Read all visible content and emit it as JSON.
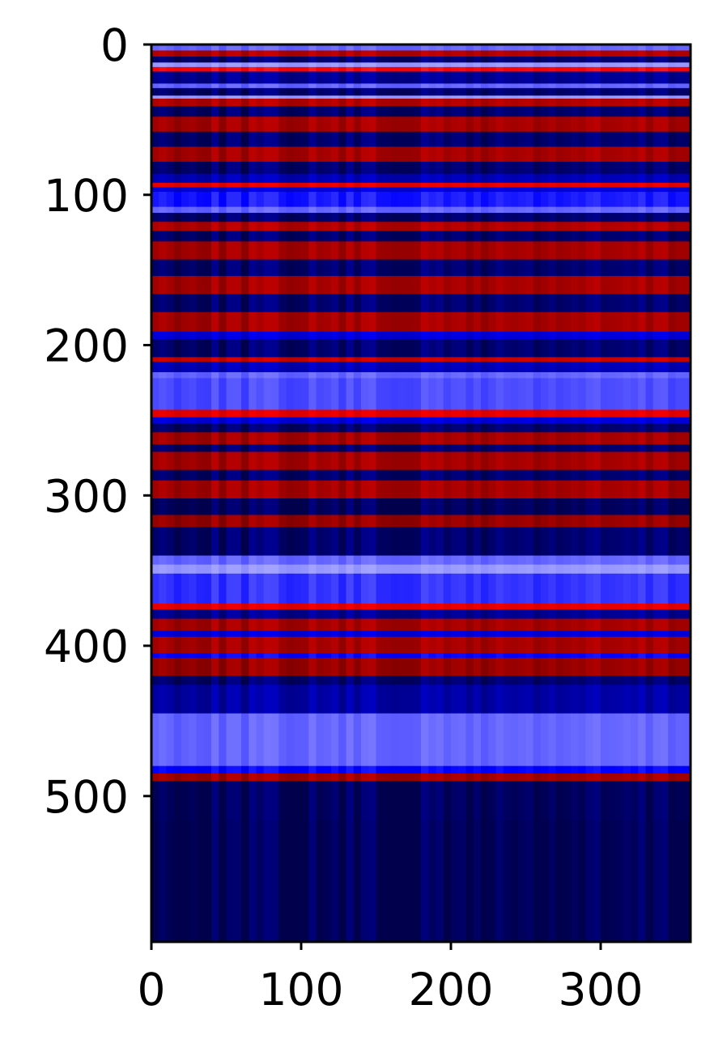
{
  "chart_data": {
    "type": "heatmap",
    "title": "",
    "xlabel": "",
    "ylabel": "",
    "colormap": "seismic",
    "colors": {
      "low": "#00004c",
      "mid_low": "#0000ff",
      "center": "#ffffff",
      "mid_high": "#ff0000",
      "high": "#800000"
    },
    "xlim": [
      0,
      360
    ],
    "ylim": [
      597,
      0
    ],
    "x_ticks": [
      0,
      100,
      200,
      300
    ],
    "x_tick_labels": [
      "0",
      "100",
      "200",
      "300"
    ],
    "y_ticks": [
      0,
      100,
      200,
      300,
      400,
      500
    ],
    "y_tick_labels": [
      "0",
      "100",
      "200",
      "300",
      "400",
      "500"
    ],
    "grid": false,
    "legend": "none",
    "rows_pattern": "horizontal bands; value is roughly constant along x",
    "row_bands": [
      {
        "y0": 0,
        "y1": 4,
        "value": -0.3
      },
      {
        "y0": 4,
        "y1": 8,
        "value": 0.8
      },
      {
        "y0": 8,
        "y1": 12,
        "value": -0.9
      },
      {
        "y0": 12,
        "y1": 15,
        "value": -0.2
      },
      {
        "y0": 15,
        "y1": 18,
        "value": 0.5
      },
      {
        "y0": 18,
        "y1": 26,
        "value": -0.8
      },
      {
        "y0": 26,
        "y1": 29,
        "value": -0.3
      },
      {
        "y0": 29,
        "y1": 34,
        "value": -0.9
      },
      {
        "y0": 34,
        "y1": 36,
        "value": -0.2
      },
      {
        "y0": 36,
        "y1": 41,
        "value": 0.8
      },
      {
        "y0": 41,
        "y1": 48,
        "value": -0.9
      },
      {
        "y0": 48,
        "y1": 58,
        "value": 0.85
      },
      {
        "y0": 58,
        "y1": 68,
        "value": -0.9
      },
      {
        "y0": 68,
        "y1": 78,
        "value": 0.85
      },
      {
        "y0": 78,
        "y1": 86,
        "value": -0.9
      },
      {
        "y0": 86,
        "y1": 92,
        "value": -0.7
      },
      {
        "y0": 92,
        "y1": 95,
        "value": 0.6
      },
      {
        "y0": 95,
        "y1": 98,
        "value": -0.6
      },
      {
        "y0": 98,
        "y1": 108,
        "value": -0.45
      },
      {
        "y0": 108,
        "y1": 112,
        "value": -0.3
      },
      {
        "y0": 112,
        "y1": 118,
        "value": -0.9
      },
      {
        "y0": 118,
        "y1": 124,
        "value": 0.8
      },
      {
        "y0": 124,
        "y1": 131,
        "value": -0.9
      },
      {
        "y0": 131,
        "y1": 143,
        "value": 0.85
      },
      {
        "y0": 143,
        "y1": 154,
        "value": -0.9
      },
      {
        "y0": 154,
        "y1": 166,
        "value": 0.85
      },
      {
        "y0": 166,
        "y1": 178,
        "value": -0.9
      },
      {
        "y0": 178,
        "y1": 191,
        "value": 0.85
      },
      {
        "y0": 191,
        "y1": 196,
        "value": -0.6
      },
      {
        "y0": 196,
        "y1": 208,
        "value": -0.9
      },
      {
        "y0": 208,
        "y1": 211,
        "value": 0.7
      },
      {
        "y0": 211,
        "y1": 218,
        "value": -0.7
      },
      {
        "y0": 218,
        "y1": 222,
        "value": -0.3
      },
      {
        "y0": 222,
        "y1": 243,
        "value": -0.35
      },
      {
        "y0": 243,
        "y1": 248,
        "value": 0.6
      },
      {
        "y0": 248,
        "y1": 252,
        "value": -0.6
      },
      {
        "y0": 252,
        "y1": 258,
        "value": -0.9
      },
      {
        "y0": 258,
        "y1": 266,
        "value": 0.85
      },
      {
        "y0": 266,
        "y1": 271,
        "value": -0.9
      },
      {
        "y0": 271,
        "y1": 283,
        "value": 0.85
      },
      {
        "y0": 283,
        "y1": 290,
        "value": -0.9
      },
      {
        "y0": 290,
        "y1": 302,
        "value": 0.85
      },
      {
        "y0": 302,
        "y1": 313,
        "value": -0.95
      },
      {
        "y0": 313,
        "y1": 321,
        "value": 0.9
      },
      {
        "y0": 321,
        "y1": 340,
        "value": -0.9
      },
      {
        "y0": 340,
        "y1": 346,
        "value": -0.3
      },
      {
        "y0": 346,
        "y1": 352,
        "value": -0.2
      },
      {
        "y0": 352,
        "y1": 372,
        "value": -0.4
      },
      {
        "y0": 372,
        "y1": 376,
        "value": 0.6
      },
      {
        "y0": 376,
        "y1": 382,
        "value": -0.8
      },
      {
        "y0": 382,
        "y1": 390,
        "value": 0.85
      },
      {
        "y0": 390,
        "y1": 394,
        "value": -0.6
      },
      {
        "y0": 394,
        "y1": 405,
        "value": 0.85
      },
      {
        "y0": 405,
        "y1": 408,
        "value": -0.5
      },
      {
        "y0": 408,
        "y1": 420,
        "value": 0.9
      },
      {
        "y0": 420,
        "y1": 426,
        "value": -0.9
      },
      {
        "y0": 426,
        "y1": 445,
        "value": -0.75
      },
      {
        "y0": 445,
        "y1": 480,
        "value": -0.3
      },
      {
        "y0": 480,
        "y1": 485,
        "value": -0.5
      },
      {
        "y0": 485,
        "y1": 490,
        "value": 0.85
      },
      {
        "y0": 490,
        "y1": 516,
        "value": -0.95
      },
      {
        "y0": 516,
        "y1": 597,
        "value": -0.97
      }
    ]
  }
}
